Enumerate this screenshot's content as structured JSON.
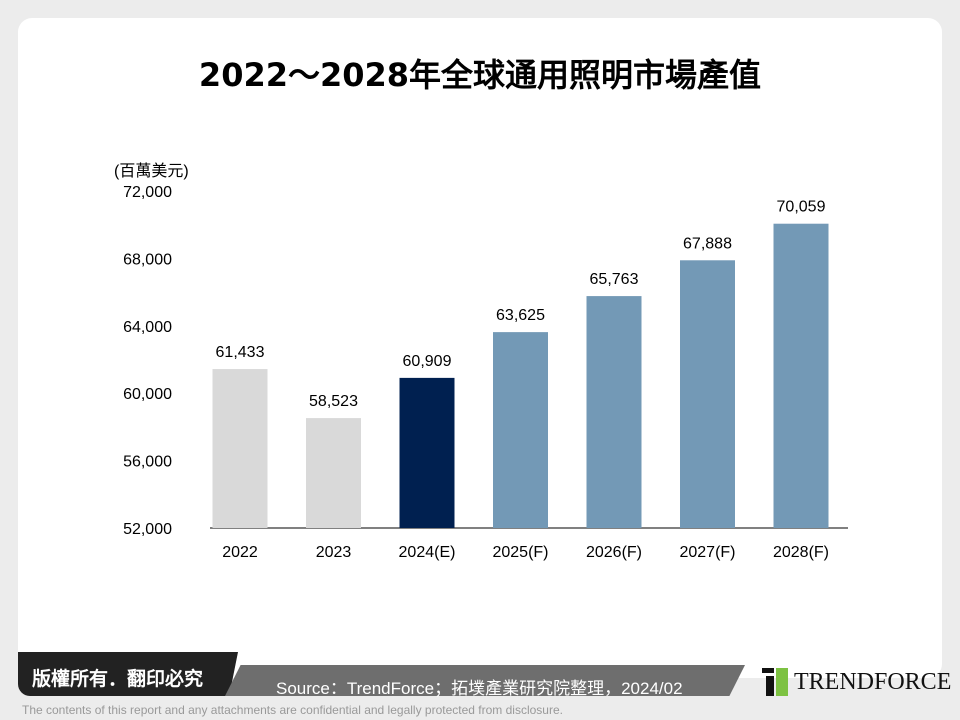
{
  "chart_data": {
    "type": "bar",
    "title": "2022～2028年全球通用照明市場產值",
    "ylabel": "(百萬美元)",
    "categories": [
      "2022",
      "2023",
      "2024(E)",
      "2025(F)",
      "2026(F)",
      "2027(F)",
      "2028(F)"
    ],
    "values": [
      61433,
      58523,
      60909,
      63625,
      65763,
      67888,
      70059
    ],
    "data_labels": [
      "61,433",
      "58,523",
      "60,909",
      "63,625",
      "65,763",
      "67,888",
      "70,059"
    ],
    "ylim": [
      52000,
      72000
    ],
    "yticks": [
      "52,000",
      "56,000",
      "60,000",
      "64,000",
      "68,000",
      "72,000"
    ],
    "grid": false,
    "colors": [
      "#d9d9d9",
      "#d9d9d9",
      "#002050",
      "#7399b6",
      "#7399b6",
      "#7399b6",
      "#7399b6"
    ]
  },
  "footer": {
    "copyright": "版權所有．翻印必究",
    "source": "Source：TrendForce；拓墣產業研究院整理，2024/02",
    "logo": "TRENDFORCE",
    "disclaimer": "The contents of this report and any attachments are confidential and legally protected from disclosure."
  }
}
